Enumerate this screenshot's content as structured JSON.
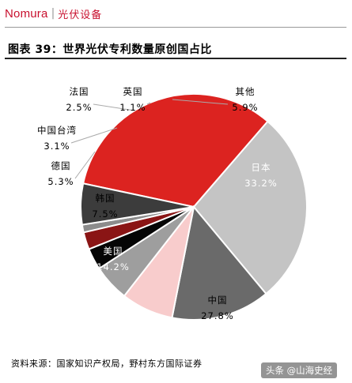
{
  "header": {
    "brand": "Nomura",
    "separator": "|",
    "section": "光伏设备"
  },
  "figure": {
    "title": "图表 39：世界光伏专利数量原创国占比",
    "source": "资料来源：国家知识产权局，野村东方国际证券"
  },
  "watermark": "头条 @山海史经",
  "chart_data": {
    "type": "pie",
    "title": "图表 39：世界光伏专利数量原创国占比",
    "slices": [
      {
        "label": "日本",
        "value": 33.2,
        "value_text": "33.2%",
        "color": "#dc2320"
      },
      {
        "label": "中国",
        "value": 27.8,
        "value_text": "27.8%",
        "color": "#c4c4c4"
      },
      {
        "label": "美国",
        "value": 14.2,
        "value_text": "14.2%",
        "color": "#6a6a6a"
      },
      {
        "label": "韩国",
        "value": 7.5,
        "value_text": "7.5%",
        "color": "#f8cccc"
      },
      {
        "label": "德国",
        "value": 5.3,
        "value_text": "5.3%",
        "color": "#9e9e9e"
      },
      {
        "label": "中国台湾",
        "value": 3.1,
        "value_text": "3.1%",
        "color": "#050505"
      },
      {
        "label": "法国",
        "value": 2.5,
        "value_text": "2.5%",
        "color": "#8a1515"
      },
      {
        "label": "英国",
        "value": 1.1,
        "value_text": "1.1%",
        "color": "#8c8c8c"
      },
      {
        "label": "其他",
        "value": 5.9,
        "value_text": "5.9%",
        "color": "#3c3c3c"
      }
    ]
  }
}
